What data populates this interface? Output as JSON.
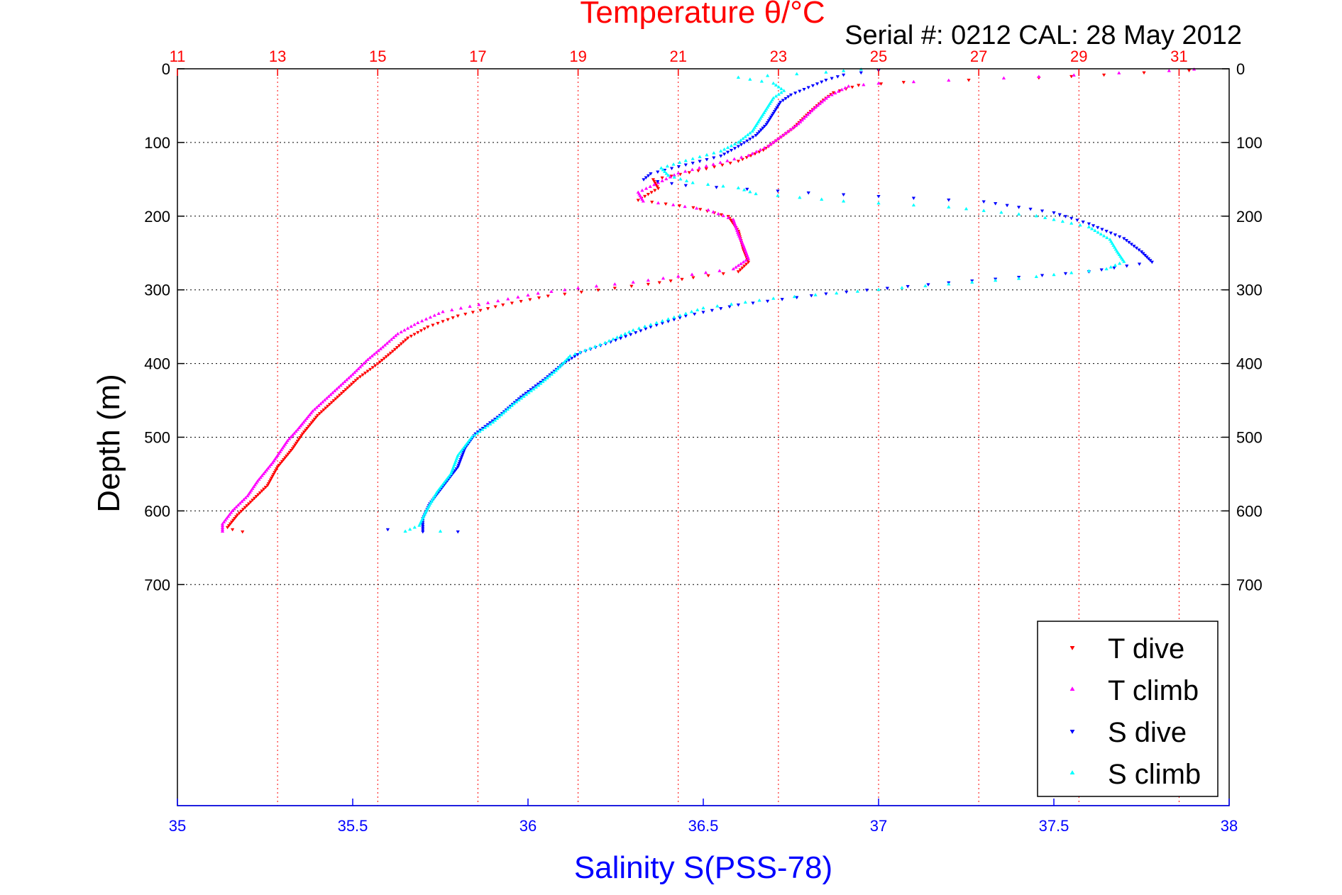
{
  "chart_data": {
    "type": "scatter",
    "title": "Temperature θ/°C",
    "subtitle": "Serial #: 0212  CAL: 28 May 2012",
    "xlabel_bottom": "Salinity S(PSS-78)",
    "xlabel_top": "Temperature θ/°C",
    "ylabel": "Depth (m)",
    "x_bottom_range": [
      35,
      38
    ],
    "x_bottom_ticks": [
      "35",
      "35.5",
      "36",
      "36.5",
      "37",
      "37.5",
      "38"
    ],
    "x_top_range": [
      11,
      32
    ],
    "x_top_ticks": [
      "11",
      "13",
      "15",
      "17",
      "19",
      "21",
      "23",
      "25",
      "27",
      "29",
      "31"
    ],
    "y_range": [
      0,
      1000
    ],
    "y_reversed": true,
    "y_ticks": [
      "0",
      "100",
      "200",
      "300",
      "400",
      "500",
      "600",
      "700"
    ],
    "grid": true,
    "legend_position": "bottom-right",
    "colors": {
      "T dive": "#ff0000",
      "T climb": "#ff00ff",
      "S dive": "#0000ff",
      "S climb": "#00ffff",
      "axis_top": "#ff0000",
      "axis_bottom": "#0000ff"
    },
    "series": [
      {
        "name": "T dive",
        "axis": "temperature",
        "marker": "triangle-down",
        "points": [
          [
            31.2,
            2
          ],
          [
            30.3,
            5
          ],
          [
            29.5,
            8
          ],
          [
            28.2,
            12
          ],
          [
            26.8,
            15
          ],
          [
            25.5,
            18
          ],
          [
            24.6,
            22
          ],
          [
            24.1,
            32
          ],
          [
            23.9,
            42
          ],
          [
            23.6,
            60
          ],
          [
            23.3,
            80
          ],
          [
            23.0,
            95
          ],
          [
            22.7,
            110
          ],
          [
            22.2,
            125
          ],
          [
            21.4,
            138
          ],
          [
            20.5,
            150
          ],
          [
            20.6,
            162
          ],
          [
            20.2,
            178
          ],
          [
            21.3,
            188
          ],
          [
            22.0,
            200
          ],
          [
            22.2,
            220
          ],
          [
            22.3,
            245
          ],
          [
            22.4,
            262
          ],
          [
            22.2,
            275
          ],
          [
            21.3,
            283
          ],
          [
            20.4,
            292
          ],
          [
            19.4,
            300
          ],
          [
            18.4,
            308
          ],
          [
            17.5,
            320
          ],
          [
            16.6,
            335
          ],
          [
            16.0,
            350
          ],
          [
            15.6,
            365
          ],
          [
            15.3,
            383
          ],
          [
            15.0,
            400
          ],
          [
            14.6,
            420
          ],
          [
            14.2,
            445
          ],
          [
            13.8,
            470
          ],
          [
            13.5,
            495
          ],
          [
            13.3,
            515
          ],
          [
            13.0,
            540
          ],
          [
            12.8,
            565
          ],
          [
            12.5,
            585
          ],
          [
            12.2,
            605
          ],
          [
            12.0,
            622
          ],
          [
            12.1,
            625
          ],
          [
            12.3,
            628
          ]
        ]
      },
      {
        "name": "T climb",
        "axis": "temperature",
        "marker": "triangle-up",
        "points": [
          [
            31.3,
            1
          ],
          [
            30.8,
            3
          ],
          [
            29.8,
            6
          ],
          [
            28.9,
            9
          ],
          [
            27.5,
            13
          ],
          [
            26.4,
            16
          ],
          [
            25.0,
            20
          ],
          [
            24.4,
            24
          ],
          [
            24.0,
            38
          ],
          [
            23.7,
            55
          ],
          [
            23.4,
            75
          ],
          [
            23.1,
            90
          ],
          [
            22.8,
            105
          ],
          [
            22.4,
            118
          ],
          [
            21.7,
            130
          ],
          [
            21.0,
            142
          ],
          [
            20.6,
            155
          ],
          [
            20.2,
            168
          ],
          [
            20.3,
            180
          ],
          [
            20.9,
            185
          ],
          [
            21.6,
            192
          ],
          [
            22.1,
            205
          ],
          [
            22.2,
            225
          ],
          [
            22.3,
            240
          ],
          [
            22.4,
            258
          ],
          [
            22.1,
            272
          ],
          [
            21.0,
            282
          ],
          [
            20.1,
            290
          ],
          [
            19.0,
            298
          ],
          [
            18.2,
            305
          ],
          [
            17.2,
            318
          ],
          [
            16.3,
            330
          ],
          [
            15.8,
            345
          ],
          [
            15.4,
            360
          ],
          [
            15.1,
            378
          ],
          [
            14.8,
            395
          ],
          [
            14.5,
            415
          ],
          [
            14.1,
            440
          ],
          [
            13.7,
            465
          ],
          [
            13.4,
            490
          ],
          [
            13.2,
            505
          ],
          [
            12.9,
            535
          ],
          [
            12.6,
            560
          ],
          [
            12.4,
            580
          ],
          [
            12.1,
            600
          ],
          [
            11.9,
            618
          ],
          [
            11.9,
            628
          ]
        ]
      },
      {
        "name": "S dive",
        "axis": "salinity",
        "marker": "triangle-down",
        "points": [
          [
            37.0,
            2
          ],
          [
            36.9,
            8
          ],
          [
            36.85,
            15
          ],
          [
            36.8,
            25
          ],
          [
            36.75,
            35
          ],
          [
            36.72,
            45
          ],
          [
            36.7,
            60
          ],
          [
            36.68,
            75
          ],
          [
            36.65,
            90
          ],
          [
            36.6,
            105
          ],
          [
            36.55,
            118
          ],
          [
            36.45,
            130
          ],
          [
            36.35,
            142
          ],
          [
            36.33,
            150
          ],
          [
            36.45,
            158
          ],
          [
            36.8,
            168
          ],
          [
            37.3,
            180
          ],
          [
            37.5,
            195
          ],
          [
            37.6,
            210
          ],
          [
            37.7,
            230
          ],
          [
            37.75,
            248
          ],
          [
            37.78,
            262
          ],
          [
            37.6,
            275
          ],
          [
            37.2,
            290
          ],
          [
            36.85,
            305
          ],
          [
            36.6,
            320
          ],
          [
            36.45,
            335
          ],
          [
            36.35,
            350
          ],
          [
            36.25,
            368
          ],
          [
            36.15,
            385
          ],
          [
            36.1,
            400
          ],
          [
            36.05,
            420
          ],
          [
            35.98,
            445
          ],
          [
            35.92,
            470
          ],
          [
            35.85,
            495
          ],
          [
            35.82,
            515
          ],
          [
            35.8,
            540
          ],
          [
            35.76,
            565
          ],
          [
            35.72,
            590
          ],
          [
            35.7,
            610
          ],
          [
            35.7,
            628
          ],
          [
            35.8,
            628
          ],
          [
            35.6,
            625
          ]
        ]
      },
      {
        "name": "S climb",
        "axis": "salinity",
        "marker": "triangle-up",
        "points": [
          [
            36.95,
            1
          ],
          [
            36.85,
            5
          ],
          [
            36.6,
            12
          ],
          [
            36.7,
            20
          ],
          [
            36.73,
            30
          ],
          [
            36.7,
            40
          ],
          [
            36.68,
            55
          ],
          [
            36.66,
            70
          ],
          [
            36.64,
            85
          ],
          [
            36.6,
            100
          ],
          [
            36.55,
            112
          ],
          [
            36.45,
            125
          ],
          [
            36.38,
            135
          ],
          [
            36.4,
            145
          ],
          [
            36.47,
            155
          ],
          [
            36.6,
            162
          ],
          [
            36.65,
            170
          ],
          [
            36.9,
            180
          ],
          [
            37.2,
            188
          ],
          [
            37.45,
            200
          ],
          [
            37.6,
            215
          ],
          [
            37.66,
            232
          ],
          [
            37.68,
            248
          ],
          [
            37.7,
            262
          ],
          [
            37.65,
            272
          ],
          [
            37.4,
            285
          ],
          [
            37.0,
            300
          ],
          [
            36.7,
            312
          ],
          [
            36.5,
            325
          ],
          [
            36.4,
            340
          ],
          [
            36.3,
            355
          ],
          [
            36.22,
            372
          ],
          [
            36.12,
            390
          ],
          [
            36.08,
            410
          ],
          [
            36.03,
            430
          ],
          [
            35.96,
            455
          ],
          [
            35.9,
            480
          ],
          [
            35.84,
            500
          ],
          [
            35.8,
            525
          ],
          [
            35.78,
            550
          ],
          [
            35.74,
            575
          ],
          [
            35.71,
            600
          ],
          [
            35.69,
            620
          ],
          [
            35.65,
            628
          ],
          [
            35.75,
            628
          ]
        ]
      }
    ]
  }
}
